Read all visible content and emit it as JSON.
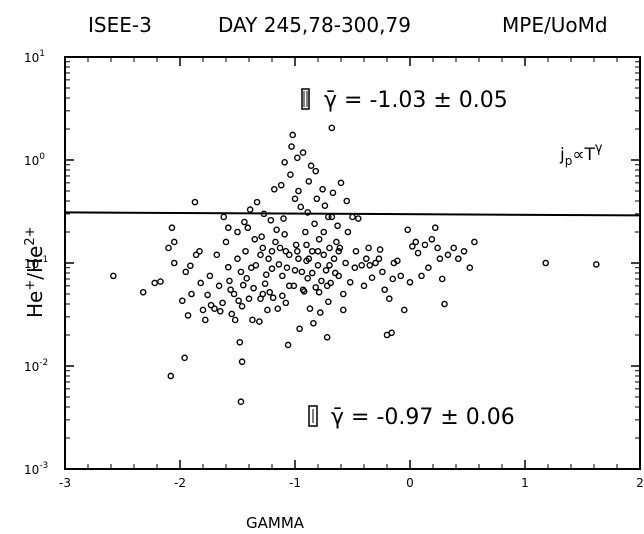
{
  "header": {
    "spacecraft": "ISEE-3",
    "period": "DAY 245,78-300,79",
    "institute": "MPE/UoMd"
  },
  "chart_data": {
    "type": "scatter",
    "xlabel": "GAMMA",
    "ylabel_base": "He",
    "ylabel_sup1": "+",
    "ylabel_sep": "/He",
    "ylabel_sup2": "2+",
    "xlim": [
      -3,
      2
    ],
    "ylim": [
      0.001,
      10
    ],
    "yscale": "log",
    "x_ticks": [
      "-3",
      "-2",
      "-1",
      "0",
      "1",
      "2"
    ],
    "y_ticks": [
      {
        "base": "10",
        "exp": "-3"
      },
      {
        "base": "10",
        "exp": "-2"
      },
      {
        "base": "10",
        "exp": "-1"
      },
      {
        "base": "10",
        "exp": "0"
      },
      {
        "base": "10",
        "exp": "1"
      }
    ],
    "threshold_line": {
      "y_left": 0.31,
      "y_right": 0.29
    },
    "annotations": {
      "upper": "γ̄ = -1.03 ± 0.05",
      "lower": "γ̄ = -0.97 ± 0.06",
      "relation": "jp∝T^γ",
      "relation_j": "j",
      "relation_p": "p",
      "relation_prop": "∝",
      "relation_T": "T",
      "relation_gamma": "γ"
    },
    "points": [
      [
        -2.58,
        0.075
      ],
      [
        -2.32,
        0.052
      ],
      [
        -2.22,
        0.064
      ],
      [
        -2.17,
        0.066
      ],
      [
        -2.1,
        0.14
      ],
      [
        -2.08,
        0.008
      ],
      [
        -2.07,
        0.22
      ],
      [
        -2.05,
        0.1
      ],
      [
        -1.98,
        0.043
      ],
      [
        -1.96,
        0.012
      ],
      [
        -1.93,
        0.031
      ],
      [
        -1.91,
        0.094
      ],
      [
        -1.87,
        0.39
      ],
      [
        -1.86,
        0.12
      ],
      [
        -1.83,
        0.13
      ],
      [
        -1.82,
        0.064
      ],
      [
        -1.8,
        0.035
      ],
      [
        -1.78,
        0.028
      ],
      [
        -1.76,
        0.049
      ],
      [
        -1.73,
        0.039
      ],
      [
        -1.7,
        0.036
      ],
      [
        -1.68,
        0.12
      ],
      [
        -1.65,
        0.034
      ],
      [
        -1.63,
        0.041
      ],
      [
        -1.62,
        0.28
      ],
      [
        -1.6,
        0.16
      ],
      [
        -1.58,
        0.091
      ],
      [
        -1.56,
        0.055
      ],
      [
        -1.55,
        0.032
      ],
      [
        -1.52,
        0.028
      ],
      [
        -1.5,
        0.11
      ],
      [
        -1.49,
        0.043
      ],
      [
        -1.48,
        0.017
      ],
      [
        -1.47,
        0.0045
      ],
      [
        -1.46,
        0.011
      ],
      [
        -1.45,
        0.061
      ],
      [
        -1.43,
        0.13
      ],
      [
        -1.42,
        0.071
      ],
      [
        -1.41,
        0.22
      ],
      [
        -1.4,
        0.045
      ],
      [
        -1.39,
        0.33
      ],
      [
        -1.37,
        0.028
      ],
      [
        -1.36,
        0.057
      ],
      [
        -1.35,
        0.17
      ],
      [
        -1.33,
        0.39
      ],
      [
        -1.31,
        0.027
      ],
      [
        -1.3,
        0.12
      ],
      [
        -1.29,
        0.18
      ],
      [
        -1.28,
        0.05
      ],
      [
        -1.26,
        0.063
      ],
      [
        -1.25,
        0.077
      ],
      [
        -1.24,
        0.035
      ],
      [
        -1.23,
        0.11
      ],
      [
        -1.21,
        0.26
      ],
      [
        -1.2,
        0.088
      ],
      [
        -1.19,
        0.046
      ],
      [
        -1.18,
        0.52
      ],
      [
        -1.17,
        0.16
      ],
      [
        -1.15,
        0.036
      ],
      [
        -1.14,
        0.097
      ],
      [
        -1.13,
        0.14
      ],
      [
        -1.12,
        0.57
      ],
      [
        -1.11,
        0.075
      ],
      [
        -1.1,
        0.27
      ],
      [
        -1.09,
        0.19
      ],
      [
        -1.08,
        0.041
      ],
      [
        -1.07,
        0.09
      ],
      [
        -1.06,
        0.016
      ],
      [
        -1.05,
        0.12
      ],
      [
        -1.04,
        0.72
      ],
      [
        -1.03,
        1.35
      ],
      [
        -1.02,
        1.75
      ],
      [
        -1.01,
        0.06
      ],
      [
        -1.0,
        0.42
      ],
      [
        -0.99,
        0.15
      ],
      [
        -0.98,
        1.05
      ],
      [
        -0.97,
        0.11
      ],
      [
        -0.96,
        0.023
      ],
      [
        -0.95,
        0.35
      ],
      [
        -0.94,
        0.082
      ],
      [
        -0.93,
        1.18
      ],
      [
        -0.92,
        0.053
      ],
      [
        -0.91,
        0.2
      ],
      [
        -0.9,
        0.15
      ],
      [
        -0.89,
        0.071
      ],
      [
        -0.88,
        0.62
      ],
      [
        -0.87,
        0.036
      ],
      [
        -0.86,
        0.88
      ],
      [
        -0.85,
        0.13
      ],
      [
        -0.84,
        0.026
      ],
      [
        -0.83,
        0.24
      ],
      [
        -0.82,
        0.058
      ],
      [
        -0.81,
        0.42
      ],
      [
        -0.8,
        0.095
      ],
      [
        -0.79,
        0.17
      ],
      [
        -0.78,
        0.033
      ],
      [
        -0.77,
        0.067
      ],
      [
        -0.76,
        0.52
      ],
      [
        -0.75,
        0.12
      ],
      [
        -0.74,
        0.36
      ],
      [
        -0.73,
        0.085
      ],
      [
        -0.72,
        0.019
      ],
      [
        -0.71,
        0.28
      ],
      [
        -0.7,
        0.14
      ],
      [
        -0.69,
        0.064
      ],
      [
        -0.68,
        2.05
      ],
      [
        -0.67,
        0.48
      ],
      [
        -0.66,
        0.11
      ],
      [
        -0.65,
        0.08
      ],
      [
        -0.64,
        0.16
      ],
      [
        -0.63,
        0.23
      ],
      [
        -0.62,
        0.075
      ],
      [
        -0.6,
        0.6
      ],
      [
        -0.58,
        0.035
      ],
      [
        -0.56,
        0.1
      ],
      [
        -0.54,
        0.2
      ],
      [
        -0.52,
        0.065
      ],
      [
        -0.5,
        0.28
      ],
      [
        -0.48,
        0.09
      ],
      [
        -0.45,
        0.27
      ],
      [
        -0.42,
        0.095
      ],
      [
        -0.4,
        0.06
      ],
      [
        -0.38,
        0.11
      ],
      [
        -0.35,
        0.095
      ],
      [
        -0.33,
        0.072
      ],
      [
        -0.3,
        0.1
      ],
      [
        -0.27,
        0.11
      ],
      [
        -0.24,
        0.082
      ],
      [
        -0.22,
        0.055
      ],
      [
        -0.2,
        0.02
      ],
      [
        -0.18,
        0.045
      ],
      [
        -0.16,
        0.021
      ],
      [
        -0.14,
        0.1
      ],
      [
        -0.11,
        0.105
      ],
      [
        -0.08,
        0.075
      ],
      [
        -0.05,
        0.035
      ],
      [
        -0.02,
        0.21
      ],
      [
        0.0,
        0.065
      ],
      [
        0.02,
        0.145
      ],
      [
        0.05,
        0.16
      ],
      [
        0.07,
        0.125
      ],
      [
        0.1,
        0.075
      ],
      [
        0.13,
        0.15
      ],
      [
        0.16,
        0.09
      ],
      [
        0.19,
        0.17
      ],
      [
        0.22,
        0.22
      ],
      [
        0.24,
        0.14
      ],
      [
        0.26,
        0.11
      ],
      [
        0.28,
        0.07
      ],
      [
        0.3,
        0.04
      ],
      [
        0.33,
        0.12
      ],
      [
        0.38,
        0.14
      ],
      [
        0.42,
        0.11
      ],
      [
        0.47,
        0.13
      ],
      [
        0.52,
        0.09
      ],
      [
        0.56,
        0.16
      ],
      [
        1.18,
        0.1
      ],
      [
        1.62,
        0.097
      ],
      [
        -1.5,
        0.2
      ],
      [
        -1.44,
        0.25
      ],
      [
        -1.27,
        0.3
      ],
      [
        -1.16,
        0.21
      ],
      [
        -1.09,
        0.95
      ],
      [
        -0.97,
        0.5
      ],
      [
        -0.89,
        0.31
      ],
      [
        -0.82,
        0.78
      ],
      [
        -0.75,
        0.2
      ],
      [
        -0.68,
        0.28
      ],
      [
        -0.61,
        0.14
      ],
      [
        -0.55,
        0.4
      ],
      [
        -1.58,
        0.22
      ],
      [
        -1.34,
        0.095
      ],
      [
        -1.22,
        0.052
      ],
      [
        -1.11,
        0.048
      ],
      [
        -1.0,
        0.085
      ],
      [
        -0.88,
        0.11
      ],
      [
        -0.79,
        0.052
      ],
      [
        -0.71,
        0.042
      ],
      [
        -1.95,
        0.082
      ],
      [
        -1.74,
        0.075
      ],
      [
        -1.66,
        0.06
      ],
      [
        -1.57,
        0.067
      ],
      [
        -1.47,
        0.082
      ],
      [
        -1.38,
        0.09
      ],
      [
        -1.28,
        0.14
      ],
      [
        -1.2,
        0.13
      ],
      [
        -1.08,
        0.13
      ],
      [
        -0.98,
        0.13
      ],
      [
        -0.9,
        0.105
      ],
      [
        -0.8,
        0.13
      ],
      [
        -0.7,
        0.095
      ],
      [
        -0.62,
        0.13
      ],
      [
        -0.47,
        0.13
      ],
      [
        -0.36,
        0.14
      ],
      [
        -0.26,
        0.135
      ],
      [
        -0.15,
        0.07
      ],
      [
        -2.05,
        0.16
      ],
      [
        -1.9,
        0.05
      ],
      [
        -1.53,
        0.05
      ],
      [
        -1.46,
        0.038
      ],
      [
        -1.3,
        0.045
      ],
      [
        -1.05,
        0.06
      ],
      [
        -0.93,
        0.055
      ],
      [
        -0.85,
        0.08
      ],
      [
        -0.72,
        0.06
      ],
      [
        -0.58,
        0.05
      ]
    ]
  }
}
